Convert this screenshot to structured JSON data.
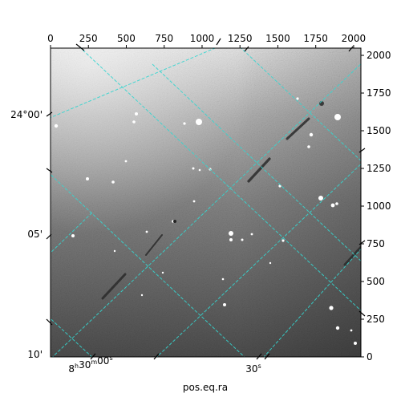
{
  "chart_data": {
    "type": "image",
    "xlabel": "pos.eq.ra",
    "pixel_axes": {
      "x": {
        "range": [
          0,
          2048
        ],
        "ticks": [
          "0",
          "250",
          "500",
          "750",
          "1000",
          "1250",
          "1500",
          "1750",
          "2000"
        ]
      },
      "y": {
        "range": [
          0,
          2048
        ],
        "ticks": [
          "0",
          "250",
          "500",
          "750",
          "1000",
          "1250",
          "1500",
          "1750",
          "2000"
        ]
      }
    },
    "world_axes": {
      "ra_ticks": [
        {
          "text": "8h30m00s",
          "base": "8",
          "sup1": "h",
          "mid": "30",
          "sup2": "m",
          "mid2": "00",
          "sup3": "s"
        },
        {
          "text": "30s",
          "base": "30",
          "sup1": "s"
        }
      ],
      "dec_ticks": [
        "24°00'",
        "05'",
        "10'"
      ]
    },
    "overlay": {
      "grid": true,
      "grid_color": "#35d6d0",
      "grid_style": "dashed"
    },
    "colormap": "gray"
  }
}
